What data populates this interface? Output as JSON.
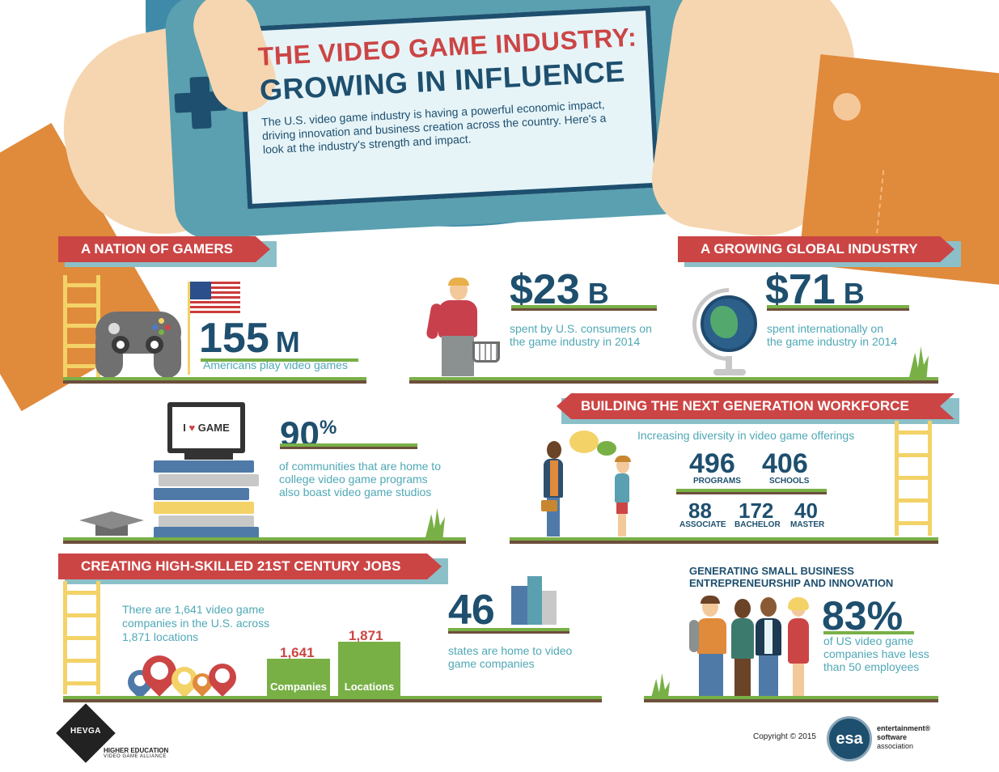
{
  "header": {
    "title_line1": "THE VIDEO GAME INDUSTRY:",
    "title_line2": "GROWING IN INFLUENCE",
    "intro": "The U.S. video game industry is having a powerful economic impact, driving innovation and business creation across the country. Here's a look at the industry's strength and impact."
  },
  "sections": {
    "nation": {
      "ribbon": "A NATION OF GAMERS",
      "value": "155",
      "unit": "M",
      "desc": "Americans play video games"
    },
    "consumers": {
      "value": "$23",
      "unit": "B",
      "desc_line1": "spent by U.S. consumers on",
      "desc_line2": "the game industry in 2014"
    },
    "global": {
      "ribbon": "A GROWING GLOBAL INDUSTRY",
      "value": "$71",
      "unit": "B",
      "desc_line1": "spent internationally on",
      "desc_line2": "the game industry in 2014"
    },
    "communities": {
      "value": "90",
      "unit": "%",
      "desc": "of communities that are home to college video game programs also boast video game studios",
      "monitor_text_left": "I",
      "monitor_heart": "♥",
      "monitor_text_right": "GAME"
    },
    "workforce": {
      "ribbon": "BUILDING THE NEXT GENERATION WORKFORCE",
      "subtitle": "Increasing diversity in video game offerings",
      "programs_value": "496",
      "programs_label": "PROGRAMS",
      "schools_value": "406",
      "schools_label": "SCHOOLS",
      "associate_value": "88",
      "associate_label": "ASSOCIATE",
      "bachelor_value": "172",
      "bachelor_label": "BACHELOR",
      "master_value": "40",
      "master_label": "MASTER"
    },
    "jobs": {
      "ribbon": "CREATING HIGH-SKILLED 21ST CENTURY JOBS",
      "desc": "There are 1,641 video game companies in the U.S. across 1,871 locations",
      "bars": [
        {
          "label": "Companies",
          "value_text": "1,641",
          "value": 1641
        },
        {
          "label": "Locations",
          "value_text": "1,871",
          "value": 1871
        }
      ]
    },
    "states": {
      "value": "46",
      "desc": "states are home to video game companies"
    },
    "small_business": {
      "title": "GENERATING SMALL BUSINESS ENTREPRENEURSHIP AND INNOVATION",
      "value": "83%",
      "desc": "of US video game companies have less than 50 employees"
    }
  },
  "footer": {
    "hevga_mark": "HEVGA",
    "hevga_name": "HIGHER EDUCATION",
    "hevga_sub": "VIDEO GAME ALLIANCE",
    "copyright": "Copyright © 2015",
    "esa_mark": "esa",
    "esa_line1": "entertainment®",
    "esa_line2": "software",
    "esa_line3": "association"
  },
  "colors": {
    "navy": "#1e4f6e",
    "red": "#cc4545",
    "teal": "#4fa8b6",
    "green": "#78b046",
    "orange": "#e08a3c",
    "skin": "#f6d6b0",
    "yellow": "#f3d267"
  },
  "icons": [
    "flag-icon",
    "controller-icon",
    "globe-icon",
    "monitor-icon",
    "books-icon",
    "graduation-cap-icon",
    "speech-bubble-icon",
    "map-pin-icon",
    "building-icon",
    "people-icon",
    "shopping-basket-icon",
    "plant-icon"
  ]
}
